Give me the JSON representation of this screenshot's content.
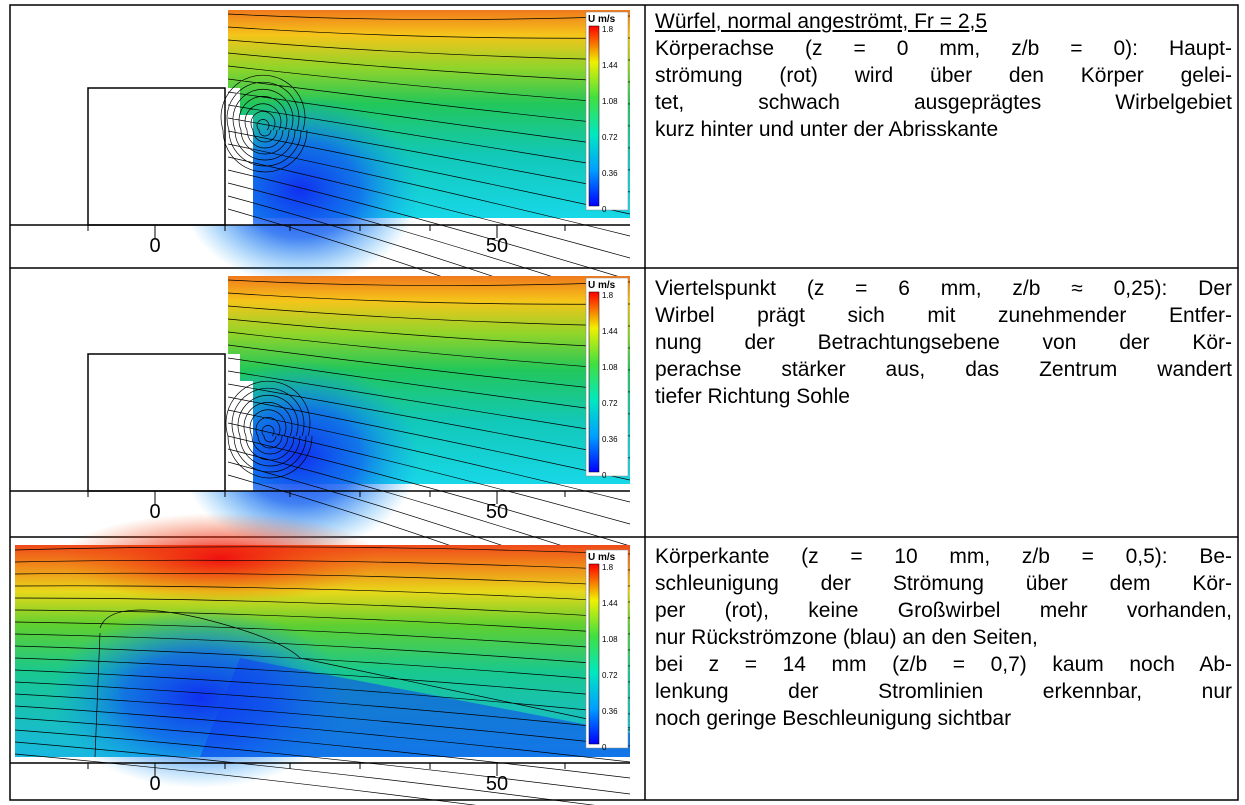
{
  "rows": [
    {
      "figure": {
        "colorbar_title": "U m/s",
        "colorbar_labels": [
          "1.8",
          "1.44",
          "1.08",
          "0.72",
          "0.36",
          "0"
        ],
        "axis_labels": [
          "0",
          "50"
        ]
      },
      "title": "Würfel, normal angeströmt, Fr = 2,5",
      "paragraphs": [
        [
          "Körperachse (z = 0 mm, z/b = 0): Haupt-",
          "strömung (rot) wird über den Körper gelei-",
          "tet, schwach ausgeprägtes Wirbelgebiet",
          "kurz hinter und unter der Abrisskante"
        ]
      ]
    },
    {
      "figure": {
        "colorbar_title": "U m/s",
        "colorbar_labels": [
          "1.8",
          "1.44",
          "1.08",
          "0.72",
          "0.36",
          "0"
        ],
        "axis_labels": [
          "0",
          "50"
        ]
      },
      "paragraphs": [
        [
          "Viertelspunkt (z = 6 mm, z/b ≈ 0,25): Der",
          "Wirbel prägt sich  mit zunehmender Entfer-",
          "nung der Betrachtungsebene von der Kör-",
          "perachse stärker aus, das Zentrum wandert",
          "tiefer Richtung Sohle"
        ]
      ]
    },
    {
      "figure": {
        "colorbar_title": "U m/s",
        "colorbar_labels": [
          "1.8",
          "1.44",
          "1.08",
          "0.72",
          "0.36",
          "0"
        ],
        "axis_labels": [
          "0",
          "50"
        ]
      },
      "paragraphs": [
        [
          "Körperkante (z = 10 mm, z/b = 0,5): Be-",
          "schleunigung der Strömung über dem Kör-",
          "per (rot), keine Großwirbel mehr vorhanden,",
          "nur Rückströmzone (blau) an den Seiten,"
        ],
        [
          "bei z = 14 mm (z/b = 0,7) kaum noch Ab-",
          "lenkung der Stromlinien erkennbar, nur",
          "noch geringe Beschleunigung sichtbar"
        ]
      ]
    }
  ]
}
